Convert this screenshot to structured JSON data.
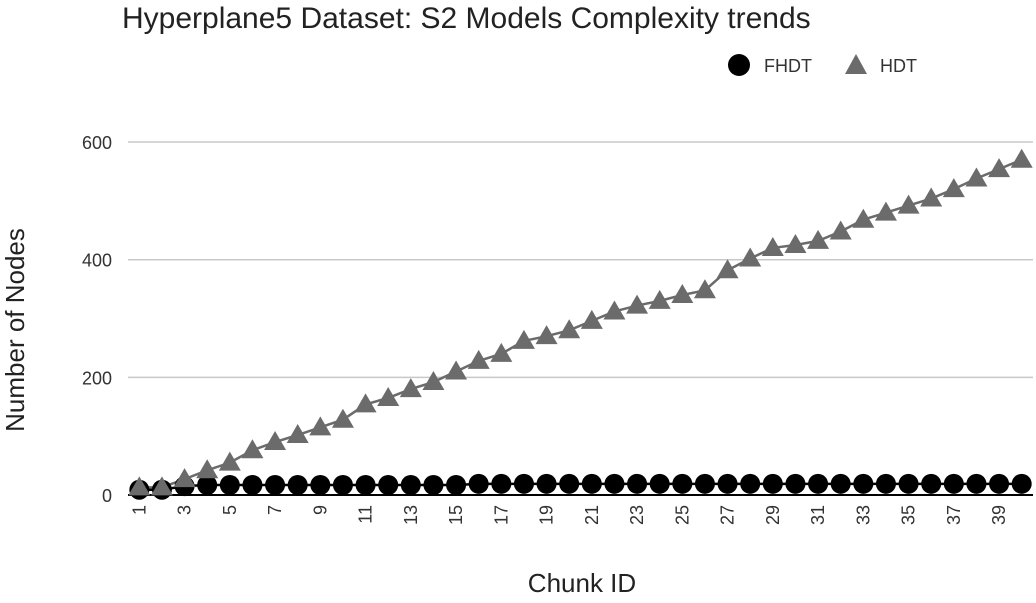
{
  "chart_data": {
    "type": "scatter",
    "title": "Hyperplane5 Dataset: S2 Models Complexity trends",
    "xlabel": "Chunk ID",
    "ylabel": "Number of Nodes",
    "x": [
      1,
      2,
      3,
      4,
      5,
      6,
      7,
      8,
      9,
      10,
      11,
      12,
      13,
      14,
      15,
      16,
      17,
      18,
      19,
      20,
      21,
      22,
      23,
      24,
      25,
      26,
      27,
      28,
      29,
      30,
      31,
      32,
      33,
      34,
      35,
      36,
      37,
      38,
      39,
      40
    ],
    "xticks": [
      1,
      3,
      5,
      7,
      9,
      11,
      13,
      15,
      17,
      19,
      21,
      23,
      25,
      27,
      29,
      31,
      33,
      35,
      37,
      39
    ],
    "yticks": [
      0,
      200,
      400,
      600
    ],
    "ylim": [
      0,
      680
    ],
    "grid": "horizontal",
    "legend_position": "top-right",
    "series": [
      {
        "name": "FHDT",
        "marker": "circle",
        "color": "#000000",
        "values": [
          9,
          9,
          15,
          17,
          17,
          17,
          17,
          17,
          17,
          17,
          17,
          17,
          17,
          17,
          17,
          19,
          19,
          19,
          19,
          19,
          19,
          19,
          19,
          19,
          19,
          19,
          19,
          19,
          19,
          19,
          19,
          19,
          19,
          19,
          19,
          19,
          19,
          19,
          19,
          19
        ]
      },
      {
        "name": "HDT",
        "marker": "triangle",
        "color": "#6b6b6b",
        "values": [
          13,
          13,
          27,
          42,
          55,
          76,
          90,
          102,
          115,
          128,
          154,
          165,
          180,
          192,
          210,
          228,
          240,
          262,
          270,
          280,
          296,
          312,
          322,
          330,
          340,
          348,
          382,
          402,
          420,
          425,
          432,
          448,
          468,
          480,
          492,
          504,
          520,
          538,
          554,
          570
        ]
      }
    ]
  }
}
